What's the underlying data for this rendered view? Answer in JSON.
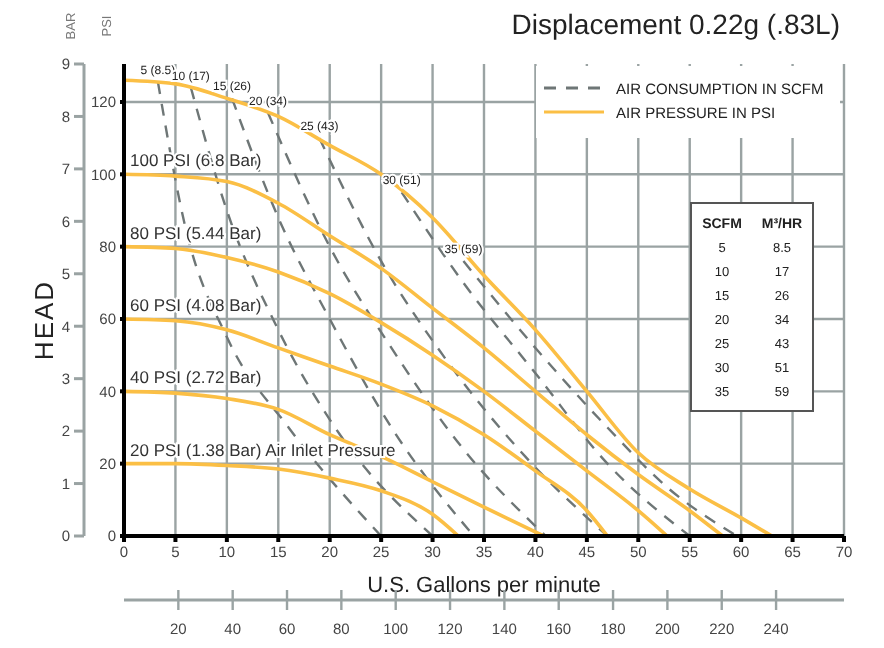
{
  "chart_data": {
    "type": "line",
    "title": "Displacement 0.22g (.83L)",
    "xlabel": "U.S. Gallons per minute",
    "ylabel": "PSI",
    "y2label": "BAR",
    "xlim": [
      0,
      70
    ],
    "xticks": [
      0,
      5,
      10,
      15,
      20,
      25,
      30,
      35,
      40,
      45,
      50,
      55,
      60,
      65,
      70
    ],
    "x2lim": [
      0,
      265
    ],
    "x2ticks": [
      20,
      40,
      60,
      80,
      100,
      120,
      140,
      160,
      180,
      200,
      220,
      240
    ],
    "ylim": [
      0,
      130.5
    ],
    "yticks": [
      0,
      20,
      40,
      60,
      80,
      100,
      120
    ],
    "y2lim": [
      0,
      9
    ],
    "y2ticks": [
      0,
      1,
      2,
      3,
      4,
      5,
      6,
      7,
      8,
      9
    ],
    "grid": true,
    "marker": "none",
    "series": [
      {
        "name": "5 (8.5)",
        "color": "#6e7676",
        "line_style": "dashed",
        "x": [
          3.3,
          6,
          10,
          16,
          25
        ],
        "values": [
          125.5,
          85,
          55,
          30,
          0
        ]
      },
      {
        "name": "10 (17)",
        "color": "#6e7676",
        "line_style": "dashed",
        "x": [
          6.5,
          10,
          15,
          21,
          30
        ],
        "values": [
          124,
          90,
          57,
          28,
          0
        ]
      },
      {
        "name": "15 (26)",
        "color": "#6e7676",
        "line_style": "dashed",
        "x": [
          10.5,
          15,
          20,
          26,
          34
        ],
        "values": [
          121,
          88,
          60,
          30,
          0
        ]
      },
      {
        "name": "20 (34)",
        "color": "#6e7676",
        "line_style": "dashed",
        "x": [
          14,
          20,
          26,
          33,
          41
        ],
        "values": [
          117,
          80,
          52,
          24,
          0
        ]
      },
      {
        "name": "25 (43)",
        "color": "#6e7676",
        "line_style": "dashed",
        "x": [
          19,
          25,
          31,
          39,
          47
        ],
        "values": [
          110,
          76,
          50,
          22,
          0
        ]
      },
      {
        "name": "30 (51)",
        "color": "#6e7676",
        "line_style": "dashed",
        "x": [
          27,
          33,
          40,
          47,
          55
        ],
        "values": [
          95,
          70,
          45,
          20,
          0
        ]
      },
      {
        "name": "35 (59)",
        "color": "#6e7676",
        "line_style": "dashed",
        "x": [
          33,
          40,
          47,
          53,
          59.6
        ],
        "values": [
          76,
          52,
          30,
          13,
          0
        ]
      },
      {
        "color": "#fbbf45",
        "line_style": "solid",
        "x": [
          0,
          5,
          10,
          15,
          20,
          25,
          30,
          35,
          40,
          45,
          50,
          55,
          60,
          63
        ],
        "values": [
          126,
          125,
          121,
          116,
          108,
          100,
          88,
          72,
          57,
          40,
          23,
          13,
          5,
          0
        ]
      },
      {
        "name": "100 PSI (6.8 Bar)",
        "color": "#fbbf45",
        "line_style": "solid",
        "x": [
          0,
          5,
          10,
          15,
          20,
          25,
          30,
          35,
          40,
          45,
          50,
          55,
          58.2
        ],
        "values": [
          100,
          99.5,
          98,
          92,
          83,
          74,
          63,
          52,
          40,
          28,
          17,
          7,
          0
        ]
      },
      {
        "name": "80 PSI (5.44 Bar)",
        "color": "#fbbf45",
        "line_style": "solid",
        "x": [
          0,
          5,
          10,
          15,
          20,
          25,
          30,
          35,
          40,
          45,
          50,
          52.8
        ],
        "values": [
          80,
          79.5,
          77,
          73,
          67,
          59,
          50,
          40,
          29,
          18,
          7,
          0
        ]
      },
      {
        "name": "60 PSI (4.08 Bar)",
        "color": "#fbbf45",
        "line_style": "solid",
        "x": [
          0,
          5,
          10,
          15,
          20,
          25,
          30,
          35,
          40,
          45,
          47
        ],
        "values": [
          60,
          59.5,
          57,
          52,
          47,
          42,
          36,
          28,
          18,
          7,
          0
        ]
      },
      {
        "name": "40 PSI (2.72 Bar)",
        "color": "#fbbf45",
        "line_style": "solid",
        "x": [
          0,
          5,
          10,
          15,
          20,
          25,
          30,
          35,
          40.8
        ],
        "values": [
          40,
          39.5,
          38,
          35,
          28,
          22,
          15,
          8,
          0
        ]
      },
      {
        "name": "20 PSI (1.38 Bar) Air Inlet Pressure",
        "color": "#fbbf45",
        "line_style": "solid",
        "x": [
          0,
          5,
          10,
          15,
          20,
          25,
          30,
          32.5
        ],
        "values": [
          20,
          20,
          19.5,
          18.5,
          16,
          12.5,
          6,
          0
        ]
      }
    ],
    "annotations": [
      "HEAD",
      "AIR CONSUMPTION IN SCFM",
      "AIR PRESSURE IN PSI",
      "SCFM",
      "M³/HR",
      "5",
      "8.5",
      "10",
      "17",
      "15",
      "26",
      "20",
      "34",
      "25",
      "43",
      "30",
      "51",
      "35",
      "59"
    ]
  }
}
